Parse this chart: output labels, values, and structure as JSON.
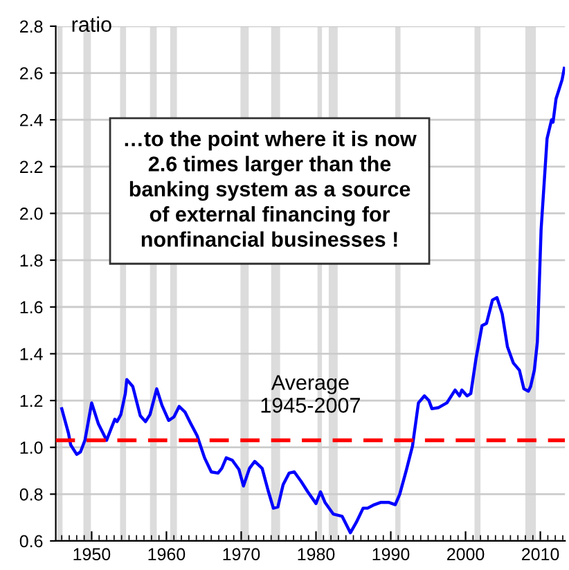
{
  "chart_data": {
    "type": "line",
    "ylabel": "ratio",
    "annotations": [
      "…to the point where it is now\n2.6 times larger than the\nbanking system as a source\nof external financing for\nnonfinancial businesses !"
    ],
    "xlim": [
      1945.2,
      2013.3
    ],
    "ylim": [
      0.6,
      2.8
    ],
    "xticks": [
      1950,
      1960,
      1970,
      1980,
      1990,
      2000,
      2010
    ],
    "yticks": [
      {
        "value": 0.6,
        "label": "0.6"
      },
      {
        "value": 0.8,
        "label": "0.8"
      },
      {
        "value": 1.0,
        "label": "1.0"
      },
      {
        "value": 1.2,
        "label": "1.2"
      },
      {
        "value": 1.4,
        "label": "1.4"
      },
      {
        "value": 1.6,
        "label": "1.6"
      },
      {
        "value": 1.8,
        "label": "1.8"
      },
      {
        "value": 2.0,
        "label": "2.0"
      },
      {
        "value": 2.2,
        "label": "2.2"
      },
      {
        "value": 2.4,
        "label": "2.4"
      },
      {
        "value": 2.6,
        "label": "2.6"
      },
      {
        "value": 2.8,
        "label": "2.8"
      }
    ],
    "grid": "y",
    "legend": false,
    "marker": "none",
    "line_style": "solid",
    "ref_lines": [
      {
        "axis": "y",
        "value": 1.03,
        "label": "Average\n1945-2007",
        "color": "#ff0000",
        "line_style": "dashed"
      }
    ],
    "bands": [
      {
        "axis": "x",
        "from": 1945.4,
        "to": 1946.1,
        "color": "#dcdcdc"
      },
      {
        "axis": "x",
        "from": 1948.9,
        "to": 1949.9,
        "color": "#dcdcdc"
      },
      {
        "axis": "x",
        "from": 1953.8,
        "to": 1954.6,
        "color": "#dcdcdc"
      },
      {
        "axis": "x",
        "from": 1957.8,
        "to": 1958.7,
        "color": "#dcdcdc"
      },
      {
        "axis": "x",
        "from": 1960.5,
        "to": 1961.4,
        "color": "#dcdcdc"
      },
      {
        "axis": "x",
        "from": 1969.9,
        "to": 1971.0,
        "color": "#dcdcdc"
      },
      {
        "axis": "x",
        "from": 1974.0,
        "to": 1975.2,
        "color": "#dcdcdc"
      },
      {
        "axis": "x",
        "from": 1980.2,
        "to": 1980.8,
        "color": "#dcdcdc"
      },
      {
        "axis": "x",
        "from": 1981.7,
        "to": 1982.9,
        "color": "#dcdcdc"
      },
      {
        "axis": "x",
        "from": 1990.6,
        "to": 1991.3,
        "color": "#dcdcdc"
      },
      {
        "axis": "x",
        "from": 2001.2,
        "to": 2002.0,
        "color": "#dcdcdc"
      },
      {
        "axis": "x",
        "from": 2008.0,
        "to": 2009.4,
        "color": "#dcdcdc"
      }
    ],
    "series": [
      {
        "color": "#0000ff",
        "x": [
          1946.0,
          1946.9,
          1947.2,
          1948.0,
          1948.5,
          1949.1,
          1950.0,
          1950.9,
          1952.0,
          1952.6,
          1953.1,
          1953.4,
          1953.9,
          1954.5,
          1954.7,
          1955.5,
          1956.5,
          1957.2,
          1957.8,
          1958.7,
          1959.4,
          1960.3,
          1961.0,
          1961.7,
          1962.5,
          1963.2,
          1964.1,
          1965.1,
          1966.0,
          1966.9,
          1967.4,
          1968.0,
          1968.8,
          1969.7,
          1970.3,
          1971.1,
          1971.8,
          1972.8,
          1973.6,
          1974.3,
          1974.9,
          1975.6,
          1976.4,
          1977.1,
          1978.0,
          1978.9,
          1980.0,
          1980.6,
          1981.2,
          1982.3,
          1983.5,
          1984.6,
          1985.4,
          1986.3,
          1986.9,
          1987.8,
          1988.7,
          1989.7,
          1990.6,
          1991.2,
          1992.1,
          1992.9,
          1993.7,
          1994.5,
          1995.1,
          1995.5,
          1996.4,
          1997.5,
          1998.6,
          1999.2,
          1999.5,
          2000.2,
          2000.7,
          2001.4,
          2002.2,
          2002.8,
          2003.6,
          2004.2,
          2004.9,
          2005.6,
          2006.4,
          2007.2,
          2007.8,
          2008.4,
          2008.7,
          2009.2,
          2009.6,
          2010.1,
          2010.9,
          2011.5,
          2011.7,
          2012.1,
          2012.5,
          2012.9,
          2013.2
        ],
        "values": [
          1.165,
          1.06,
          1.01,
          0.97,
          0.98,
          1.03,
          1.19,
          1.1,
          1.03,
          1.08,
          1.12,
          1.11,
          1.14,
          1.23,
          1.29,
          1.26,
          1.135,
          1.11,
          1.14,
          1.25,
          1.18,
          1.115,
          1.13,
          1.175,
          1.15,
          1.105,
          1.05,
          0.955,
          0.895,
          0.89,
          0.91,
          0.955,
          0.945,
          0.905,
          0.835,
          0.91,
          0.94,
          0.91,
          0.815,
          0.74,
          0.745,
          0.84,
          0.89,
          0.895,
          0.855,
          0.81,
          0.76,
          0.81,
          0.765,
          0.715,
          0.705,
          0.635,
          0.68,
          0.74,
          0.74,
          0.755,
          0.765,
          0.765,
          0.755,
          0.8,
          0.905,
          1.005,
          1.19,
          1.22,
          1.2,
          1.165,
          1.17,
          1.19,
          1.245,
          1.22,
          1.245,
          1.22,
          1.23,
          1.38,
          1.52,
          1.53,
          1.63,
          1.64,
          1.57,
          1.43,
          1.36,
          1.33,
          1.25,
          1.24,
          1.26,
          1.33,
          1.45,
          1.93,
          2.32,
          2.4,
          2.39,
          2.49,
          2.53,
          2.57,
          2.62
        ]
      }
    ]
  }
}
